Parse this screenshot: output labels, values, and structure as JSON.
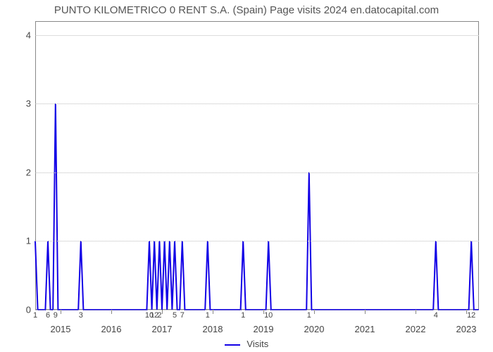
{
  "title": "PUNTO KILOMETRICO 0 RENT S.A. (Spain) Page visits 2024 en.datocapital.com",
  "chart": {
    "type": "line",
    "line_color": "#1200e6",
    "line_width": 2,
    "background_color": "#ffffff",
    "grid_color": "#bbbbbb",
    "border_color": "#888888",
    "title_fontsize": 15,
    "title_color": "#555555",
    "label_fontsize": 13,
    "label_color": "#444444",
    "ylim": [
      0,
      4.2
    ],
    "yticks": [
      0,
      1,
      2,
      3,
      4
    ],
    "x_domain": [
      0,
      175
    ],
    "x_major_ticks": [
      {
        "pos": 10,
        "label": "2015"
      },
      {
        "pos": 30,
        "label": "2016"
      },
      {
        "pos": 50,
        "label": "2017"
      },
      {
        "pos": 70,
        "label": "2018"
      },
      {
        "pos": 90,
        "label": "2019"
      },
      {
        "pos": 110,
        "label": "2020"
      },
      {
        "pos": 130,
        "label": "2021"
      },
      {
        "pos": 150,
        "label": "2022"
      },
      {
        "pos": 170,
        "label": "2023"
      }
    ],
    "x_data_labels": [
      {
        "pos": 0,
        "label": "1"
      },
      {
        "pos": 5,
        "label": "6"
      },
      {
        "pos": 8,
        "label": "9"
      },
      {
        "pos": 18,
        "label": "3"
      },
      {
        "pos": 45,
        "label": "10"
      },
      {
        "pos": 47,
        "label": "12"
      },
      {
        "pos": 49,
        "label": "2"
      },
      {
        "pos": 55,
        "label": "5"
      },
      {
        "pos": 58,
        "label": "7"
      },
      {
        "pos": 68,
        "label": "1"
      },
      {
        "pos": 82,
        "label": "1"
      },
      {
        "pos": 92,
        "label": "10"
      },
      {
        "pos": 108,
        "label": "1"
      },
      {
        "pos": 158,
        "label": "4"
      },
      {
        "pos": 172,
        "label": "12"
      }
    ],
    "series": [
      {
        "x": 0,
        "y": 1.0
      },
      {
        "x": 1,
        "y": 0.0
      },
      {
        "x": 4,
        "y": 0.0
      },
      {
        "x": 5,
        "y": 1.0
      },
      {
        "x": 6,
        "y": 0.0
      },
      {
        "x": 7,
        "y": 0.0
      },
      {
        "x": 8,
        "y": 3.0
      },
      {
        "x": 9,
        "y": 0.0
      },
      {
        "x": 17,
        "y": 0.0
      },
      {
        "x": 18,
        "y": 1.0
      },
      {
        "x": 19,
        "y": 0.0
      },
      {
        "x": 44,
        "y": 0.0
      },
      {
        "x": 45,
        "y": 1.0
      },
      {
        "x": 46,
        "y": 0.0
      },
      {
        "x": 47,
        "y": 1.0
      },
      {
        "x": 48,
        "y": 0.0
      },
      {
        "x": 49,
        "y": 1.0
      },
      {
        "x": 50,
        "y": 0.0
      },
      {
        "x": 51,
        "y": 1.0
      },
      {
        "x": 52,
        "y": 0.0
      },
      {
        "x": 53,
        "y": 1.0
      },
      {
        "x": 54,
        "y": 0.0
      },
      {
        "x": 55,
        "y": 1.0
      },
      {
        "x": 56,
        "y": 0.0
      },
      {
        "x": 57,
        "y": 0.0
      },
      {
        "x": 58,
        "y": 1.0
      },
      {
        "x": 59,
        "y": 0.0
      },
      {
        "x": 67,
        "y": 0.0
      },
      {
        "x": 68,
        "y": 1.0
      },
      {
        "x": 69,
        "y": 0.0
      },
      {
        "x": 81,
        "y": 0.0
      },
      {
        "x": 82,
        "y": 1.0
      },
      {
        "x": 83,
        "y": 0.0
      },
      {
        "x": 91,
        "y": 0.0
      },
      {
        "x": 92,
        "y": 1.0
      },
      {
        "x": 93,
        "y": 0.0
      },
      {
        "x": 107,
        "y": 0.0
      },
      {
        "x": 108,
        "y": 2.0
      },
      {
        "x": 109,
        "y": 0.0
      },
      {
        "x": 157,
        "y": 0.0
      },
      {
        "x": 158,
        "y": 1.0
      },
      {
        "x": 159,
        "y": 0.0
      },
      {
        "x": 171,
        "y": 0.0
      },
      {
        "x": 172,
        "y": 1.0
      },
      {
        "x": 173,
        "y": 0.0
      },
      {
        "x": 175,
        "y": 0.0
      }
    ],
    "legend_label": "Visits"
  }
}
